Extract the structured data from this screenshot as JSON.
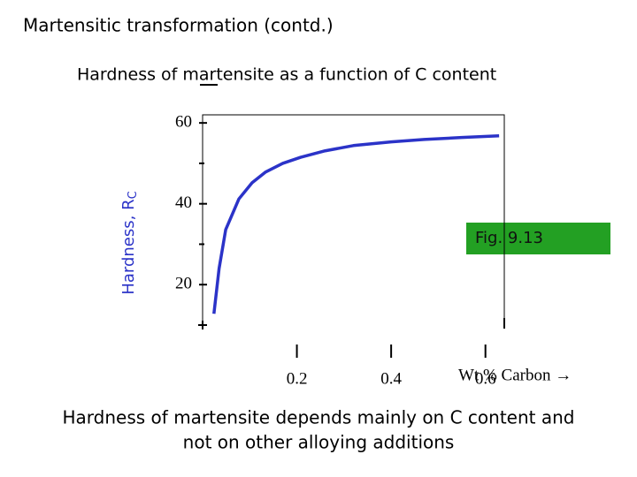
{
  "slide_title": "Martensitic transformation (contd.)",
  "caption_lines": [
    "Hardness of martensite depends mainly on C content and",
    "not on other alloying additions"
  ],
  "chart_data": {
    "type": "line",
    "title": "Hardness of martensite as a function of C content",
    "ylabel": "Hardness, R",
    "ylabel_sub": "C",
    "xlabel": "Wt % Carbon →",
    "annotation": "Fig. 9.13",
    "x": [
      0.024,
      0.035,
      0.049,
      0.077,
      0.105,
      0.133,
      0.17,
      0.208,
      0.26,
      0.32,
      0.4,
      0.47,
      0.55,
      0.629
    ],
    "series": [
      {
        "name": "Hardness",
        "color": "#2b33c8",
        "values": [
          12.8,
          24,
          33.6,
          41.2,
          45.2,
          47.8,
          50,
          51.5,
          53.1,
          54.4,
          55.3,
          55.9,
          56.4,
          56.8
        ]
      }
    ],
    "xlim": [
      0,
      0.64
    ],
    "ylim": [
      10,
      62
    ],
    "xticks": [
      0.2,
      0.4,
      0.6
    ],
    "yticks": [
      20,
      40,
      60
    ],
    "minor_yticks": [
      30,
      50
    ]
  }
}
